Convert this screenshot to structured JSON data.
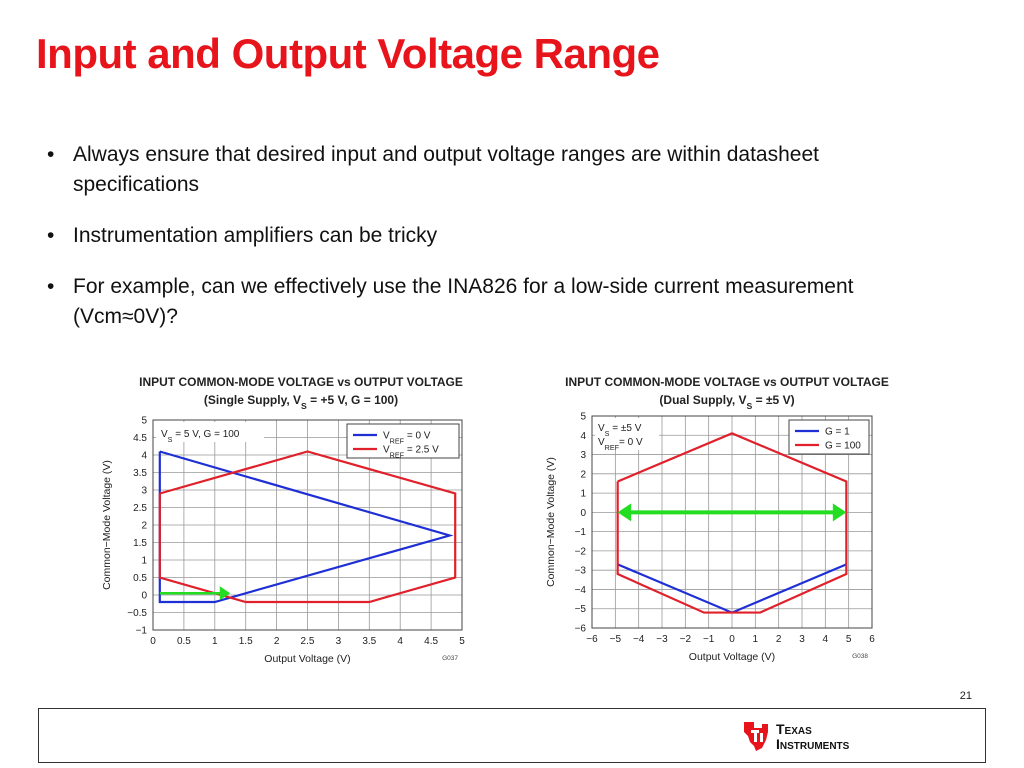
{
  "slide": {
    "title": "Input and Output Voltage Range",
    "bullets": [
      "Always ensure that desired input and output voltage ranges are within datasheet specifications",
      "Instrumentation amplifiers can be tricky",
      "For example, can we effectively use the INA826 for a low-side current measurement (Vcm≈0V)?"
    ],
    "page_number": "21",
    "logo_text_line1": "Texas",
    "logo_text_line2": "Instruments"
  },
  "colors": {
    "title": "#e8141b",
    "blue": "#1f2fd6",
    "red": "#e0202a",
    "green": "#22dd22",
    "grid": "#999999"
  },
  "chart_data": [
    {
      "type": "line",
      "title": "INPUT COMMON-MODE VOLTAGE vs OUTPUT VOLTAGE",
      "subtitle_parts": [
        "(Single Supply, V",
        "S",
        " = +5 V, G = 100)"
      ],
      "xlabel": "Output Voltage (V)",
      "ylabel": "Common−Mode Voltage (V)",
      "xlim": [
        0,
        5
      ],
      "ylim": [
        -1,
        5
      ],
      "xticks": [
        0,
        0.5,
        1,
        1.5,
        2,
        2.5,
        3,
        3.5,
        4,
        4.5,
        5
      ],
      "xtick_labels": [
        "0",
        "0.5",
        "1",
        "1.5",
        "2",
        "2.5",
        "3",
        "3.5",
        "4",
        "4.5",
        "5"
      ],
      "yticks": [
        -1,
        -0.5,
        0,
        0.5,
        1,
        1.5,
        2,
        2.5,
        3,
        3.5,
        4,
        4.5,
        5
      ],
      "ytick_labels": [
        "−1",
        "−0.5",
        "0",
        "0.5",
        "1",
        "1.5",
        "2",
        "2.5",
        "3",
        "3.5",
        "4",
        "4.5",
        "5"
      ],
      "grid": true,
      "annotation_parts": [
        "V",
        "S",
        " = 5 V, G = 100"
      ],
      "legend_position": "top-right",
      "figure_code": "G037",
      "series": [
        {
          "name_parts": [
            "V",
            "REF",
            " = 0 V"
          ],
          "color": "#1f2fd6",
          "x": [
            0.11,
            4.8,
            1.0,
            0.11,
            0.11
          ],
          "y": [
            4.1,
            1.7,
            -0.2,
            -0.2,
            4.1
          ]
        },
        {
          "name_parts": [
            "V",
            "REF",
            " = 2.5 V"
          ],
          "color": "#e0202a",
          "x": [
            0.11,
            2.5,
            4.89,
            4.89,
            3.5,
            1.5,
            0.11,
            0.11
          ],
          "y": [
            2.9,
            4.1,
            2.9,
            0.5,
            -0.2,
            -0.2,
            0.5,
            2.9
          ]
        }
      ],
      "arrow": {
        "x": [
          0.11,
          1.25
        ],
        "y": [
          0.05,
          0.05
        ],
        "color": "#22dd22"
      }
    },
    {
      "type": "line",
      "title": "INPUT COMMON-MODE VOLTAGE vs OUTPUT VOLTAGE",
      "subtitle_parts": [
        "(Dual Supply, V",
        "S",
        " = ±5 V)"
      ],
      "xlabel": "Output Voltage (V)",
      "ylabel": "Common−Mode Voltage (V)",
      "xlim": [
        -6,
        6
      ],
      "ylim": [
        -6,
        5
      ],
      "xticks": [
        -6,
        -5,
        -4,
        -3,
        -2,
        -1,
        0,
        1,
        2,
        3,
        4,
        5,
        6
      ],
      "xtick_labels": [
        "−6",
        "−5",
        "−4",
        "−3",
        "−2",
        "−1",
        "0",
        "1",
        "2",
        "3",
        "4",
        "5",
        "6"
      ],
      "yticks": [
        -6,
        -5,
        -4,
        -3,
        -2,
        -1,
        0,
        1,
        2,
        3,
        4,
        5
      ],
      "ytick_labels": [
        "−6",
        "−5",
        "−4",
        "−3",
        "−2",
        "−1",
        "0",
        "1",
        "2",
        "3",
        "4",
        "5"
      ],
      "grid": true,
      "annotation_lines": [
        [
          "V",
          "S",
          " = ±5 V"
        ],
        [
          "V",
          "REF",
          "= 0 V"
        ]
      ],
      "legend_position": "top-right",
      "figure_code": "G038",
      "series": [
        {
          "name_parts": [
            "G = 1"
          ],
          "color": "#1f2fd6",
          "x": [
            -4.9,
            0,
            4.9
          ],
          "y": [
            -2.7,
            -5.2,
            -2.7
          ]
        },
        {
          "name_parts": [
            "G = 100"
          ],
          "color": "#e0202a",
          "x": [
            -4.9,
            0,
            4.9,
            4.9,
            1.2,
            -1.2,
            -4.9,
            -4.9
          ],
          "y": [
            1.6,
            4.1,
            1.6,
            -3.2,
            -5.2,
            -5.2,
            -3.2,
            1.6
          ]
        }
      ],
      "arrow": {
        "x": [
          -4.9,
          4.9
        ],
        "y": [
          0,
          0
        ],
        "color": "#22dd22",
        "double_headed": true
      }
    }
  ]
}
